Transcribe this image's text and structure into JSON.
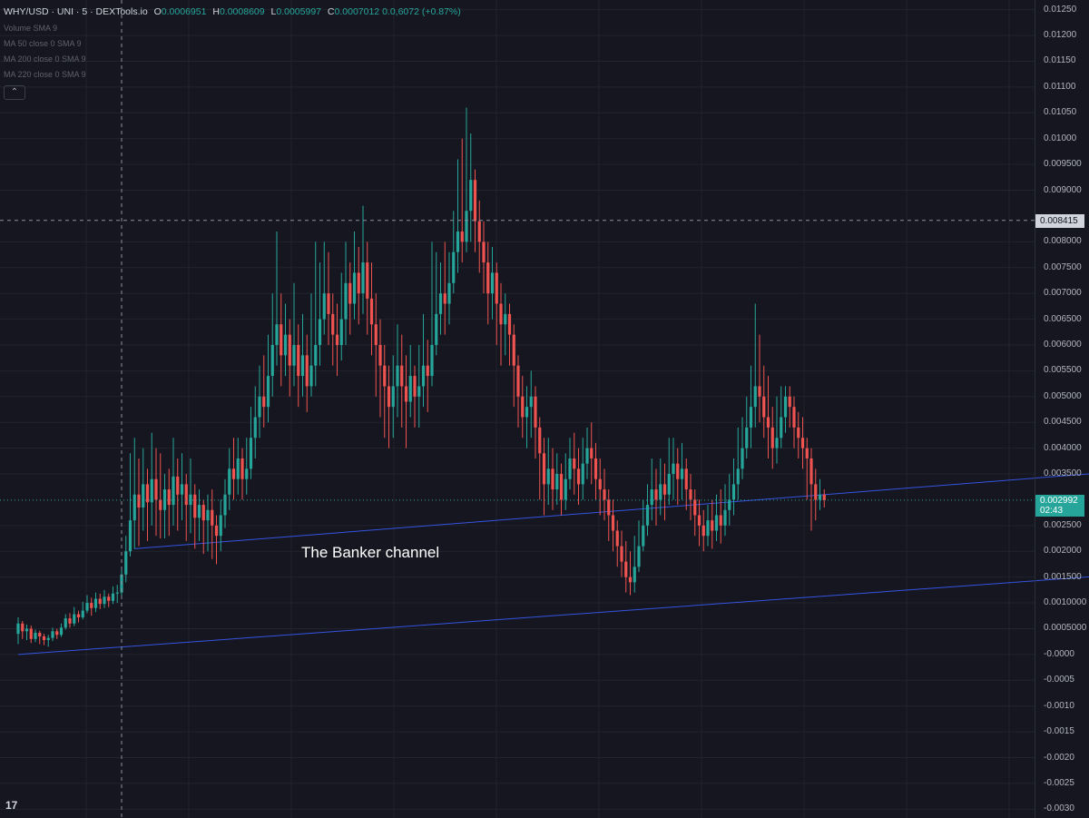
{
  "header": {
    "symbol": "WHY/USD · UNI · 5 · DEXTools.io",
    "open_label": "O",
    "open": "0.0006951",
    "high_label": "H",
    "high": "0.0008609",
    "low_label": "L",
    "low": "0.0005997",
    "close_label": "C",
    "close": "0.0007012",
    "change": "0.0,6072 (+0.87%)"
  },
  "indicators": [
    "Volume SMA 9",
    "MA 50 close 0 SMA 9",
    "MA 200 close 0 SMA 9",
    "MA 220 close 0 SMA 9"
  ],
  "collapse_icon": "chevron-up-icon",
  "logo_icon": "tradingview-logo-icon",
  "logo_text": "17",
  "colors": {
    "background": "#161620",
    "grid": "#21232d",
    "up": "#26a69a",
    "down": "#ef5350",
    "channel": "#3554e0",
    "axis_text": "#b2b5be"
  },
  "price_tag": {
    "value": "0.002992",
    "countdown": "02:43"
  },
  "crosshair": {
    "price": "0.008415",
    "time_index": 24
  },
  "annotation": "The Banker channel",
  "chart_data": {
    "type": "candlestick",
    "ylim": [
      -0.0031,
      0.0126
    ],
    "ticks": [
      {
        "v": 0.0125,
        "label": "0.01250"
      },
      {
        "v": 0.012,
        "label": "0.01200"
      },
      {
        "v": 0.0115,
        "label": "0.01150"
      },
      {
        "v": 0.011,
        "label": "0.01100"
      },
      {
        "v": 0.0105,
        "label": "0.01050"
      },
      {
        "v": 0.01,
        "label": "0.01000"
      },
      {
        "v": 0.0095,
        "label": "0.009500"
      },
      {
        "v": 0.009,
        "label": "0.009000"
      },
      {
        "v": 0.008,
        "label": "0.008000"
      },
      {
        "v": 0.0075,
        "label": "0.007500"
      },
      {
        "v": 0.007,
        "label": "0.007000"
      },
      {
        "v": 0.0065,
        "label": "0.006500"
      },
      {
        "v": 0.006,
        "label": "0.006000"
      },
      {
        "v": 0.0055,
        "label": "0.005500"
      },
      {
        "v": 0.005,
        "label": "0.005000"
      },
      {
        "v": 0.0045,
        "label": "0.004500"
      },
      {
        "v": 0.004,
        "label": "0.004000"
      },
      {
        "v": 0.0035,
        "label": "0.003500"
      },
      {
        "v": 0.0025,
        "label": "0.002500"
      },
      {
        "v": 0.002,
        "label": "0.002000"
      },
      {
        "v": 0.0015,
        "label": "0.001500"
      },
      {
        "v": 0.001,
        "label": "0.0010000"
      },
      {
        "v": 0.0005,
        "label": "0.0005000"
      },
      {
        "v": 0.0,
        "label": "-0.0000"
      },
      {
        "v": -0.0005,
        "label": "-0.0005"
      },
      {
        "v": -0.001,
        "label": "-0.0010"
      },
      {
        "v": -0.0015,
        "label": "-0.0015"
      },
      {
        "v": -0.002,
        "label": "-0.0020"
      },
      {
        "v": -0.0025,
        "label": "-0.0025"
      },
      {
        "v": -0.003,
        "label": "-0.0030"
      }
    ],
    "channel_lines": [
      {
        "x0": 0,
        "y0": 0.0,
        "x1": 294,
        "y1": 0.00178
      },
      {
        "x0": 27,
        "y0": 0.00205,
        "x1": 294,
        "y1": 0.0038
      }
    ],
    "candles": [
      [
        0.0004,
        0.0006,
        0.00072,
        0.0002
      ],
      [
        0.0006,
        0.00045,
        0.00065,
        0.0003
      ],
      [
        0.00045,
        0.0005,
        0.00058,
        0.00028
      ],
      [
        0.0005,
        0.0003,
        0.00056,
        0.00022
      ],
      [
        0.0003,
        0.00042,
        0.00048,
        0.00024
      ],
      [
        0.00042,
        0.00035,
        0.00046,
        0.0002
      ],
      [
        0.00035,
        0.00028,
        0.0004,
        0.00018
      ],
      [
        0.00028,
        0.00032,
        0.00038,
        0.00015
      ],
      [
        0.00032,
        0.00045,
        0.00052,
        0.00026
      ],
      [
        0.00045,
        0.00038,
        0.0005,
        0.0003
      ],
      [
        0.00038,
        0.00052,
        0.0006,
        0.00034
      ],
      [
        0.00052,
        0.0007,
        0.00078,
        0.00048
      ],
      [
        0.0007,
        0.0006,
        0.0008,
        0.00052
      ],
      [
        0.0006,
        0.00078,
        0.00092,
        0.00055
      ],
      [
        0.00078,
        0.00072,
        0.00085,
        0.00062
      ],
      [
        0.00072,
        0.00085,
        0.00102,
        0.00068
      ],
      [
        0.00085,
        0.001,
        0.00115,
        0.0008
      ],
      [
        0.001,
        0.0009,
        0.0011,
        0.00075
      ],
      [
        0.0009,
        0.00108,
        0.0012,
        0.00082
      ],
      [
        0.00108,
        0.00098,
        0.00118,
        0.00088
      ],
      [
        0.00098,
        0.00112,
        0.00125,
        0.0009
      ],
      [
        0.00112,
        0.00104,
        0.00118,
        0.00092
      ],
      [
        0.00104,
        0.00118,
        0.00132,
        0.00098
      ],
      [
        0.00118,
        0.0012,
        0.00135,
        0.001
      ],
      [
        0.0012,
        0.00155,
        0.0017,
        0.0011
      ],
      [
        0.00155,
        0.002,
        0.0023,
        0.0014
      ],
      [
        0.002,
        0.0026,
        0.0039,
        0.0019
      ],
      [
        0.0026,
        0.0031,
        0.0042,
        0.00205
      ],
      [
        0.0031,
        0.00285,
        0.0038,
        0.0021
      ],
      [
        0.00285,
        0.0033,
        0.004,
        0.0024
      ],
      [
        0.0033,
        0.00295,
        0.0036,
        0.0022
      ],
      [
        0.00295,
        0.0034,
        0.0043,
        0.0025
      ],
      [
        0.0034,
        0.003,
        0.004,
        0.0023
      ],
      [
        0.003,
        0.0028,
        0.0039,
        0.00225
      ],
      [
        0.0028,
        0.0032,
        0.0035,
        0.00225
      ],
      [
        0.0032,
        0.0029,
        0.0036,
        0.0023
      ],
      [
        0.0029,
        0.00345,
        0.0042,
        0.0025
      ],
      [
        0.00345,
        0.0031,
        0.0038,
        0.0024
      ],
      [
        0.0031,
        0.0033,
        0.0039,
        0.0026
      ],
      [
        0.0033,
        0.0029,
        0.0035,
        0.0022
      ],
      [
        0.0029,
        0.0031,
        0.0038,
        0.00235
      ],
      [
        0.0031,
        0.00265,
        0.0033,
        0.00205
      ],
      [
        0.00265,
        0.0029,
        0.0032,
        0.0022
      ],
      [
        0.0029,
        0.0026,
        0.003,
        0.00195
      ],
      [
        0.0026,
        0.0028,
        0.0031,
        0.002
      ],
      [
        0.0028,
        0.0025,
        0.0032,
        0.00185
      ],
      [
        0.0025,
        0.0023,
        0.0027,
        0.00175
      ],
      [
        0.0023,
        0.0027,
        0.003,
        0.002
      ],
      [
        0.0027,
        0.0031,
        0.0034,
        0.00245
      ],
      [
        0.0031,
        0.0036,
        0.004,
        0.0028
      ],
      [
        0.0036,
        0.0034,
        0.0042,
        0.003
      ],
      [
        0.0034,
        0.0038,
        0.0042,
        0.0031
      ],
      [
        0.0038,
        0.0034,
        0.004,
        0.003
      ],
      [
        0.0034,
        0.0036,
        0.0042,
        0.0031
      ],
      [
        0.0036,
        0.0042,
        0.0048,
        0.0034
      ],
      [
        0.0042,
        0.0046,
        0.0052,
        0.0038
      ],
      [
        0.0046,
        0.005,
        0.0056,
        0.0042
      ],
      [
        0.005,
        0.0048,
        0.0058,
        0.0044
      ],
      [
        0.0048,
        0.0054,
        0.0062,
        0.0045
      ],
      [
        0.0054,
        0.006,
        0.007,
        0.005
      ],
      [
        0.006,
        0.0064,
        0.0082,
        0.0056
      ],
      [
        0.0064,
        0.0058,
        0.007,
        0.0052
      ],
      [
        0.0058,
        0.0062,
        0.0068,
        0.0054
      ],
      [
        0.0062,
        0.0056,
        0.0065,
        0.005
      ],
      [
        0.0056,
        0.006,
        0.0072,
        0.0052
      ],
      [
        0.006,
        0.0054,
        0.0064,
        0.0048
      ],
      [
        0.0054,
        0.0058,
        0.0066,
        0.005
      ],
      [
        0.0058,
        0.0052,
        0.0062,
        0.0047
      ],
      [
        0.0052,
        0.0056,
        0.007,
        0.005
      ],
      [
        0.0056,
        0.006,
        0.008,
        0.0052
      ],
      [
        0.006,
        0.0065,
        0.0076,
        0.0056
      ],
      [
        0.0065,
        0.007,
        0.008,
        0.0062
      ],
      [
        0.007,
        0.0066,
        0.0078,
        0.006
      ],
      [
        0.0066,
        0.0062,
        0.007,
        0.0056
      ],
      [
        0.0062,
        0.006,
        0.0068,
        0.0054
      ],
      [
        0.006,
        0.0065,
        0.0074,
        0.0057
      ],
      [
        0.0065,
        0.0072,
        0.008,
        0.006
      ],
      [
        0.0072,
        0.0068,
        0.0076,
        0.0062
      ],
      [
        0.0068,
        0.0074,
        0.0082,
        0.0065
      ],
      [
        0.0074,
        0.007,
        0.0079,
        0.0064
      ],
      [
        0.007,
        0.0076,
        0.0087,
        0.0066
      ],
      [
        0.0076,
        0.0069,
        0.008,
        0.0062
      ],
      [
        0.0069,
        0.0064,
        0.0076,
        0.0058
      ],
      [
        0.0064,
        0.006,
        0.007,
        0.005
      ],
      [
        0.006,
        0.0056,
        0.0065,
        0.0046
      ],
      [
        0.0056,
        0.0052,
        0.006,
        0.0042
      ],
      [
        0.0052,
        0.0048,
        0.0056,
        0.004
      ],
      [
        0.0048,
        0.0052,
        0.0058,
        0.0042
      ],
      [
        0.0052,
        0.0056,
        0.0064,
        0.0046
      ],
      [
        0.0056,
        0.0052,
        0.0062,
        0.0044
      ],
      [
        0.0052,
        0.0049,
        0.0058,
        0.004
      ],
      [
        0.0049,
        0.0054,
        0.006,
        0.0046
      ],
      [
        0.0054,
        0.005,
        0.0056,
        0.0044
      ],
      [
        0.005,
        0.0052,
        0.006,
        0.0044
      ],
      [
        0.0052,
        0.0056,
        0.0066,
        0.0048
      ],
      [
        0.0056,
        0.0054,
        0.0061,
        0.0047
      ],
      [
        0.0054,
        0.006,
        0.008,
        0.0052
      ],
      [
        0.006,
        0.0066,
        0.0078,
        0.0058
      ],
      [
        0.0066,
        0.007,
        0.0076,
        0.0062
      ],
      [
        0.007,
        0.0068,
        0.008,
        0.0062
      ],
      [
        0.0068,
        0.0072,
        0.0078,
        0.0064
      ],
      [
        0.0072,
        0.0078,
        0.0086,
        0.007
      ],
      [
        0.0078,
        0.0082,
        0.0096,
        0.0074
      ],
      [
        0.0082,
        0.008,
        0.01,
        0.0076
      ],
      [
        0.008,
        0.0086,
        0.0106,
        0.0078
      ],
      [
        0.0086,
        0.0092,
        0.0101,
        0.008
      ],
      [
        0.0092,
        0.0084,
        0.0094,
        0.0078
      ],
      [
        0.0084,
        0.008,
        0.0088,
        0.0074
      ],
      [
        0.008,
        0.0076,
        0.0084,
        0.007
      ],
      [
        0.0076,
        0.007,
        0.008,
        0.0064
      ],
      [
        0.007,
        0.0074,
        0.0079,
        0.0065
      ],
      [
        0.0074,
        0.0068,
        0.0076,
        0.006
      ],
      [
        0.0068,
        0.0064,
        0.0072,
        0.0056
      ],
      [
        0.0064,
        0.0066,
        0.007,
        0.0058
      ],
      [
        0.0066,
        0.0062,
        0.0068,
        0.0056
      ],
      [
        0.0062,
        0.0056,
        0.0064,
        0.0048
      ],
      [
        0.0056,
        0.005,
        0.0058,
        0.0044
      ],
      [
        0.005,
        0.0046,
        0.0054,
        0.0042
      ],
      [
        0.0046,
        0.0048,
        0.0052,
        0.004
      ],
      [
        0.0048,
        0.005,
        0.0055,
        0.0042
      ],
      [
        0.005,
        0.0044,
        0.0052,
        0.0038
      ],
      [
        0.0044,
        0.0039,
        0.0046,
        0.003
      ],
      [
        0.0039,
        0.0033,
        0.0042,
        0.0027
      ],
      [
        0.0033,
        0.0036,
        0.0042,
        0.0029
      ],
      [
        0.0036,
        0.0032,
        0.004,
        0.0028
      ],
      [
        0.0032,
        0.0035,
        0.0039,
        0.0029
      ],
      [
        0.0035,
        0.003,
        0.0037,
        0.0027
      ],
      [
        0.003,
        0.0034,
        0.0039,
        0.0028
      ],
      [
        0.0034,
        0.0038,
        0.0042,
        0.0032
      ],
      [
        0.0038,
        0.0036,
        0.0043,
        0.0031
      ],
      [
        0.0036,
        0.0033,
        0.004,
        0.0029
      ],
      [
        0.0033,
        0.0037,
        0.0042,
        0.003
      ],
      [
        0.0037,
        0.004,
        0.0044,
        0.0034
      ],
      [
        0.004,
        0.0038,
        0.0045,
        0.0033
      ],
      [
        0.0038,
        0.0034,
        0.0041,
        0.003
      ],
      [
        0.0034,
        0.0032,
        0.0038,
        0.0027
      ],
      [
        0.0032,
        0.003,
        0.0036,
        0.0026
      ],
      [
        0.003,
        0.0027,
        0.0032,
        0.0022
      ],
      [
        0.0027,
        0.0024,
        0.003,
        0.002
      ],
      [
        0.0024,
        0.0021,
        0.0026,
        0.0017
      ],
      [
        0.0021,
        0.0018,
        0.0024,
        0.0015
      ],
      [
        0.0018,
        0.0015,
        0.0022,
        0.0012
      ],
      [
        0.0015,
        0.0014,
        0.002,
        0.00115
      ],
      [
        0.0014,
        0.0017,
        0.0023,
        0.0012
      ],
      [
        0.0017,
        0.0021,
        0.0026,
        0.0016
      ],
      [
        0.0021,
        0.0025,
        0.003,
        0.002
      ],
      [
        0.0025,
        0.0029,
        0.0033,
        0.0023
      ],
      [
        0.0029,
        0.0032,
        0.0038,
        0.0026
      ],
      [
        0.0032,
        0.003,
        0.0036,
        0.0025
      ],
      [
        0.003,
        0.0033,
        0.0038,
        0.0027
      ],
      [
        0.0033,
        0.0031,
        0.0037,
        0.0026
      ],
      [
        0.0031,
        0.0035,
        0.0042,
        0.0029
      ],
      [
        0.0035,
        0.0037,
        0.0042,
        0.003
      ],
      [
        0.0037,
        0.0034,
        0.004,
        0.0029
      ],
      [
        0.0034,
        0.0036,
        0.0041,
        0.003
      ],
      [
        0.0036,
        0.0032,
        0.0038,
        0.0028
      ],
      [
        0.0032,
        0.003,
        0.0035,
        0.0026
      ],
      [
        0.003,
        0.0027,
        0.0032,
        0.0023
      ],
      [
        0.0027,
        0.0025,
        0.003,
        0.0021
      ],
      [
        0.0025,
        0.0023,
        0.0028,
        0.002
      ],
      [
        0.0023,
        0.0026,
        0.0029,
        0.0021
      ],
      [
        0.0026,
        0.0024,
        0.003,
        0.00205
      ],
      [
        0.0024,
        0.0027,
        0.0031,
        0.0022
      ],
      [
        0.0027,
        0.0025,
        0.0032,
        0.00215
      ],
      [
        0.0025,
        0.0028,
        0.0033,
        0.0023
      ],
      [
        0.0028,
        0.003,
        0.0035,
        0.0025
      ],
      [
        0.003,
        0.0033,
        0.0038,
        0.0027
      ],
      [
        0.0033,
        0.0036,
        0.0044,
        0.003
      ],
      [
        0.0036,
        0.004,
        0.0046,
        0.0034
      ],
      [
        0.004,
        0.0044,
        0.005,
        0.0038
      ],
      [
        0.0044,
        0.0048,
        0.0056,
        0.004
      ],
      [
        0.0048,
        0.0052,
        0.0068,
        0.0044
      ],
      [
        0.0052,
        0.005,
        0.0062,
        0.0045
      ],
      [
        0.005,
        0.0046,
        0.0056,
        0.0042
      ],
      [
        0.0046,
        0.0044,
        0.0054,
        0.0038
      ],
      [
        0.0044,
        0.004,
        0.0048,
        0.0036
      ],
      [
        0.004,
        0.0042,
        0.005,
        0.0037
      ],
      [
        0.0042,
        0.0046,
        0.0052,
        0.004
      ],
      [
        0.0046,
        0.005,
        0.0052,
        0.0043
      ],
      [
        0.005,
        0.0048,
        0.0052,
        0.0044
      ],
      [
        0.0048,
        0.0044,
        0.005,
        0.004
      ],
      [
        0.0044,
        0.0042,
        0.0047,
        0.0038
      ],
      [
        0.0042,
        0.004,
        0.0046,
        0.0036
      ],
      [
        0.004,
        0.0038,
        0.0042,
        0.003
      ],
      [
        0.0038,
        0.0033,
        0.004,
        0.0024
      ],
      [
        0.0033,
        0.003,
        0.0036,
        0.0026
      ],
      [
        0.003,
        0.0031,
        0.0034,
        0.0028
      ],
      [
        0.0031,
        0.00299,
        0.0032,
        0.00285
      ]
    ]
  }
}
